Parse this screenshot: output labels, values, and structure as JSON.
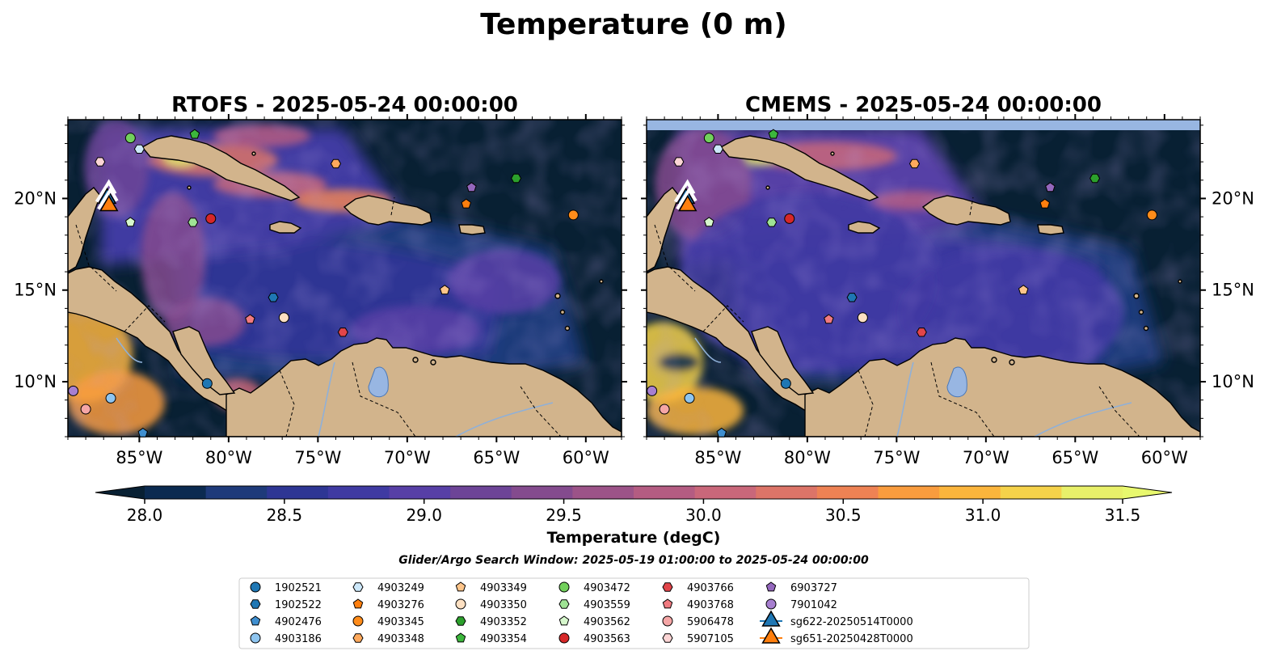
{
  "figure_title": "Temperature (0 m)",
  "panels": [
    {
      "title": "RTOFS - 2025-05-24 00:00:00"
    },
    {
      "title": "CMEMS - 2025-05-24 00:00:00"
    }
  ],
  "axes": {
    "lon_ticks": [
      "85°W",
      "80°W",
      "75°W",
      "70°W",
      "65°W",
      "60°W"
    ],
    "lat_ticks": [
      "20°N",
      "15°N",
      "10°N"
    ]
  },
  "colorbar": {
    "label": "Temperature (degC)",
    "min": 28.0,
    "max": 31.5,
    "step": 0.25,
    "ticks": [
      "28.0",
      "28.5",
      "29.0",
      "29.5",
      "30.0",
      "30.5",
      "31.0",
      "31.5"
    ],
    "colors": [
      "#0b2a50",
      "#1e3a7a",
      "#2e3694",
      "#3f3aa2",
      "#573fa6",
      "#6d4497",
      "#844b8e",
      "#9c5388",
      "#b45c82",
      "#c9677a",
      "#dc7468",
      "#ee8254",
      "#f99c3e",
      "#fbb53c",
      "#f5d24a",
      "#e8f06a"
    ],
    "under_color": "#082033",
    "over_color": "#e8f86e"
  },
  "search_window": "Glider/Argo Search Window: 2025-05-19 01:00:00 to 2025-05-24 00:00:00",
  "legend": [
    {
      "label": "1902521",
      "color": "#1f77b4",
      "marker": "circle"
    },
    {
      "label": "1902522",
      "color": "#1f77b4",
      "marker": "hexagon"
    },
    {
      "label": "4902476",
      "color": "#3f8fd0",
      "marker": "pentagon"
    },
    {
      "label": "4903186",
      "color": "#8ec5f0",
      "marker": "circle"
    },
    {
      "label": "4903249",
      "color": "#cde8fa",
      "marker": "hexagon"
    },
    {
      "label": "4903276",
      "color": "#ff7f0e",
      "marker": "pentagon"
    },
    {
      "label": "4903345",
      "color": "#ff8c1a",
      "marker": "circle"
    },
    {
      "label": "4903348",
      "color": "#ffa95c",
      "marker": "hexagon"
    },
    {
      "label": "4903349",
      "color": "#ffc58a",
      "marker": "pentagon"
    },
    {
      "label": "4903350",
      "color": "#fde0c2",
      "marker": "circle"
    },
    {
      "label": "4903352",
      "color": "#2ca02c",
      "marker": "hexagon"
    },
    {
      "label": "4903354",
      "color": "#3cb63c",
      "marker": "pentagon"
    },
    {
      "label": "4903472",
      "color": "#72d05c",
      "marker": "circle"
    },
    {
      "label": "4903559",
      "color": "#9fe394",
      "marker": "hexagon"
    },
    {
      "label": "4903562",
      "color": "#d6f7cc",
      "marker": "pentagon"
    },
    {
      "label": "4903563",
      "color": "#d62728",
      "marker": "circle"
    },
    {
      "label": "4903766",
      "color": "#e2454a",
      "marker": "hexagon"
    },
    {
      "label": "4903768",
      "color": "#f07a80",
      "marker": "pentagon"
    },
    {
      "label": "5906478",
      "color": "#f5a6a6",
      "marker": "circle"
    },
    {
      "label": "5907105",
      "color": "#fcd5d5",
      "marker": "hexagon"
    },
    {
      "label": "6903727",
      "color": "#9467bd",
      "marker": "pentagon"
    },
    {
      "label": "7901042",
      "color": "#a77fd0",
      "marker": "circle"
    },
    {
      "label": "sg622-20250514T0000",
      "color": "#1f77b4",
      "marker": "triangle"
    },
    {
      "label": "sg651-20250428T0000",
      "color": "#ff7f0e",
      "marker": "triangle"
    }
  ],
  "map_markers": [
    {
      "id": "1902521",
      "lon": -81.2,
      "lat": 9.9
    },
    {
      "id": "1902522",
      "lon": -77.5,
      "lat": 14.6
    },
    {
      "id": "4902476",
      "lon": -84.8,
      "lat": 7.2
    },
    {
      "id": "4903186",
      "lon": -86.6,
      "lat": 9.1
    },
    {
      "id": "4903249",
      "lon": -85.0,
      "lat": 22.7
    },
    {
      "id": "4903276",
      "lon": -66.7,
      "lat": 19.7
    },
    {
      "id": "4903345",
      "lon": -60.7,
      "lat": 19.1
    },
    {
      "id": "4903348",
      "lon": -74.0,
      "lat": 21.9
    },
    {
      "id": "4903349",
      "lon": -67.9,
      "lat": 15.0
    },
    {
      "id": "4903350",
      "lon": -76.9,
      "lat": 13.5
    },
    {
      "id": "4903352",
      "lon": -63.9,
      "lat": 21.1
    },
    {
      "id": "4903354",
      "lon": -81.9,
      "lat": 23.5
    },
    {
      "id": "4903472",
      "lon": -85.5,
      "lat": 23.3
    },
    {
      "id": "4903559",
      "lon": -82.0,
      "lat": 18.7
    },
    {
      "id": "4903562",
      "lon": -85.5,
      "lat": 18.7
    },
    {
      "id": "4903563",
      "lon": -81.0,
      "lat": 18.9
    },
    {
      "id": "4903766",
      "lon": -73.6,
      "lat": 12.7
    },
    {
      "id": "4903768",
      "lon": -78.8,
      "lat": 13.4
    },
    {
      "id": "5906478",
      "lon": -88.0,
      "lat": 8.5
    },
    {
      "id": "5907105",
      "lon": -87.2,
      "lat": 22.0
    },
    {
      "id": "6903727",
      "lon": -66.4,
      "lat": 20.6
    },
    {
      "id": "7901042",
      "lon": -88.7,
      "lat": 9.5
    },
    {
      "id": "sg622-20250514T0000",
      "lon": -86.8,
      "lat": 20.0
    },
    {
      "id": "sg651-20250428T0000",
      "lon": -86.7,
      "lat": 19.6
    }
  ]
}
